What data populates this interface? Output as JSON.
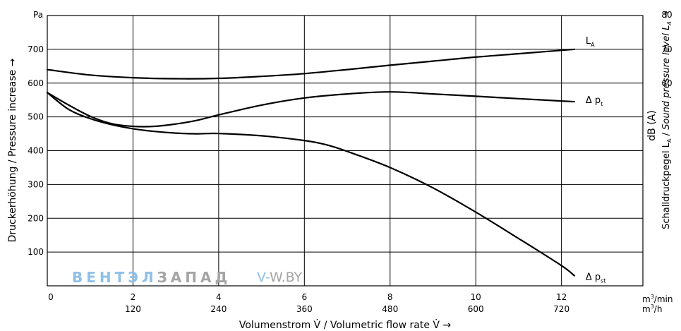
{
  "chart_data": {
    "type": "line",
    "title": "",
    "x_primary": {
      "label": "Volumenstrom V̇ / Volumetric flow rate V̇ →",
      "unit": "m³/min",
      "ticks": [
        0,
        2,
        4,
        6,
        8,
        10,
        12
      ],
      "range": [
        0,
        13.9
      ]
    },
    "x_secondary": {
      "unit": "m³/h",
      "ticks": [
        "120",
        "240",
        "360",
        "480",
        "600",
        "720"
      ]
    },
    "y_left": {
      "label": "Druckerhöhung / Pressure increase →",
      "unit": "Pa",
      "ticks": [
        100,
        200,
        300,
        400,
        500,
        600,
        700
      ],
      "range": [
        0,
        800
      ]
    },
    "y_right": {
      "label": "Schalldruckpegel LA / Sound pressure level LA →",
      "unit": "dB (A)",
      "ticks": [
        60,
        70,
        80
      ],
      "range": [
        0,
        80
      ]
    },
    "grid": true,
    "series": [
      {
        "name": "LA",
        "axis": "right",
        "x": [
          0,
          1,
          2,
          3,
          4,
          5,
          6,
          7,
          8,
          9,
          10,
          11,
          12,
          12.3
        ],
        "y": [
          64,
          62.4,
          61.6,
          61.3,
          61.4,
          62,
          62.8,
          64,
          65.3,
          66.5,
          67.7,
          68.7,
          69.7,
          70
        ]
      },
      {
        "name": "Δ pt",
        "axis": "left",
        "x": [
          0,
          0.5,
          1,
          1.5,
          2,
          2.5,
          3,
          3.5,
          4,
          5,
          6,
          7,
          8,
          9,
          10,
          11,
          12,
          12.3
        ],
        "y": [
          572,
          535,
          502,
          480,
          472,
          472,
          479,
          490,
          506,
          535,
          556,
          568,
          574,
          568,
          561,
          554,
          547,
          545
        ]
      },
      {
        "name": "Δ pst",
        "axis": "left",
        "x": [
          0,
          0.5,
          1,
          1.5,
          2,
          2.5,
          3,
          3.5,
          4,
          5,
          6,
          6.5,
          7,
          8,
          9,
          10,
          11,
          12,
          12.3
        ],
        "y": [
          572,
          522,
          495,
          477,
          465,
          457,
          452,
          450,
          451,
          444,
          430,
          418,
          398,
          350,
          290,
          218,
          140,
          60,
          30
        ]
      }
    ],
    "series_labels": [
      {
        "main": "L",
        "sub": "A"
      },
      {
        "main": "Δ p",
        "sub": "t"
      },
      {
        "main": "Δ p",
        "sub": "st"
      }
    ]
  },
  "watermark": {
    "brand_blue": "ВЕНТЭЛ",
    "brand_gray": "ЗАПАД",
    "site_blue": "V-",
    "site_gray": "W.BY",
    "color_blue": "#8fc0e8",
    "color_gray": "#a5a5a5"
  },
  "colors": {
    "lines": "#000000",
    "background": "#ffffff"
  }
}
